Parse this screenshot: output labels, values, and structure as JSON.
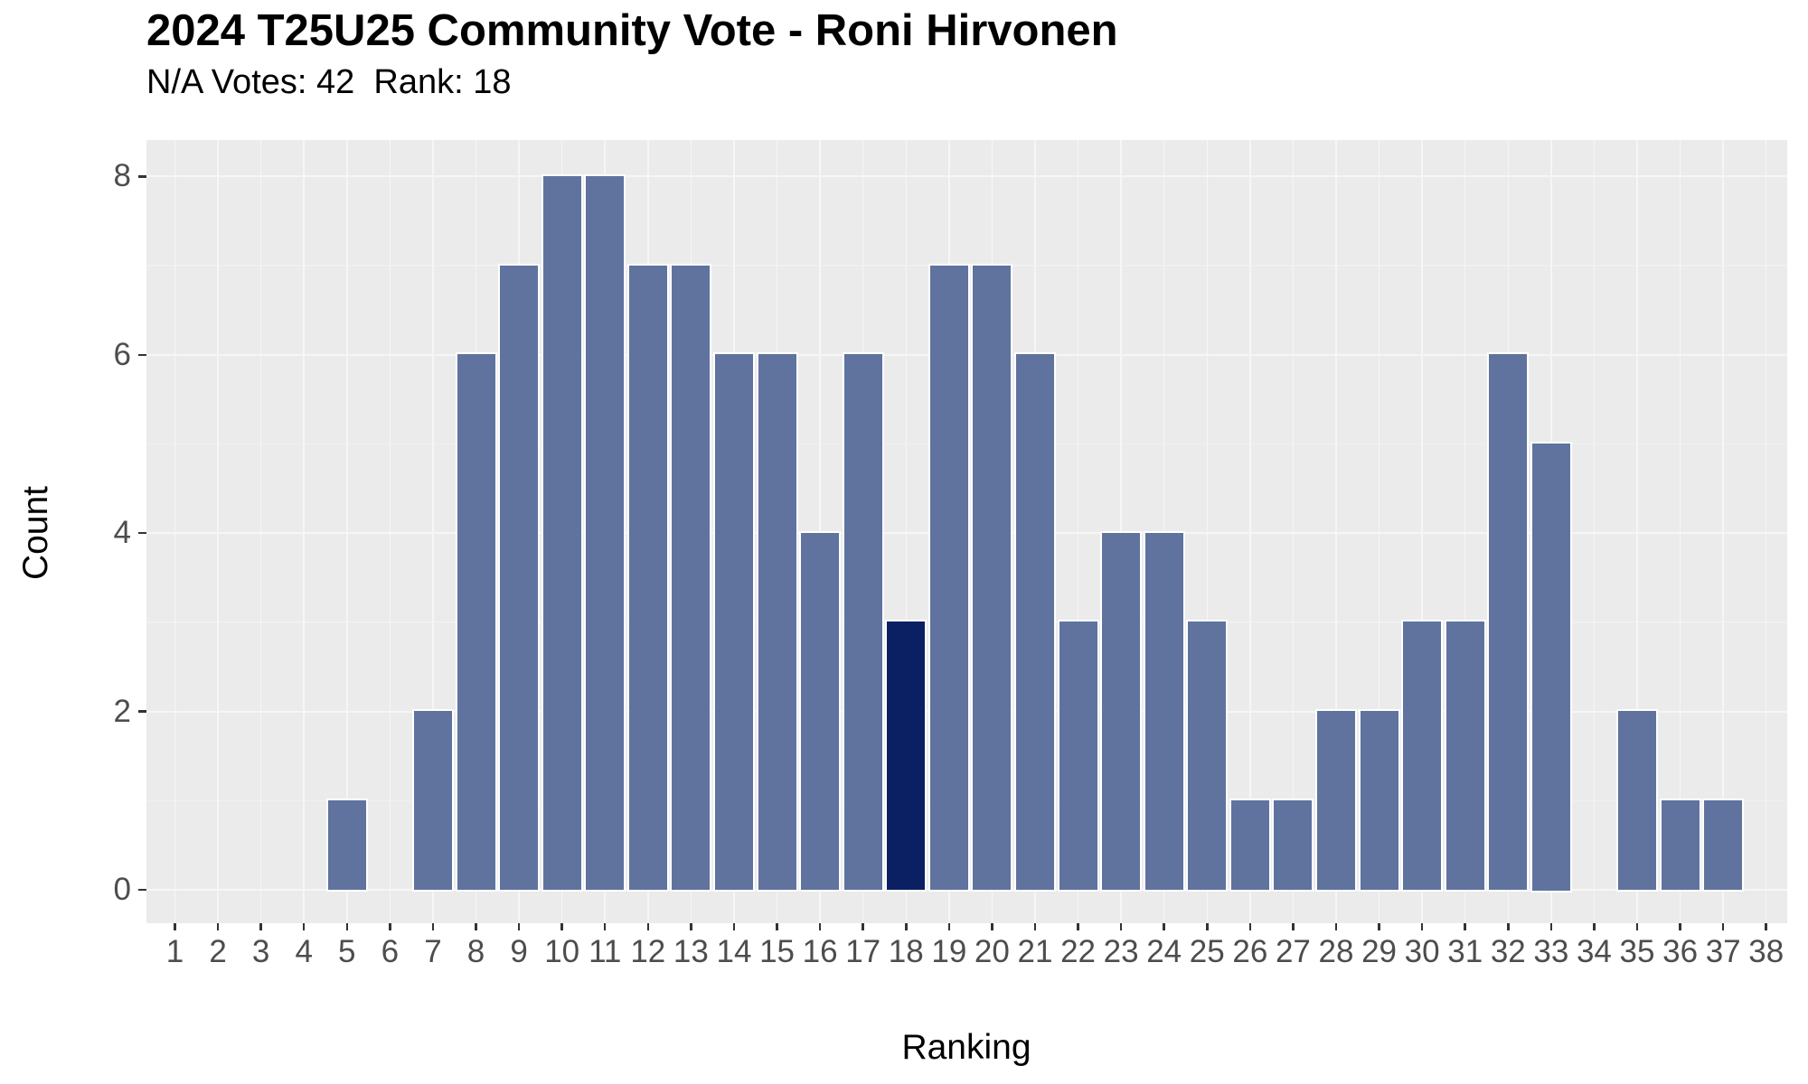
{
  "chart_data": {
    "type": "bar",
    "title": "2024 T25U25 Community Vote - Roni Hirvonen",
    "subtitle": "N/A Votes: 42  Rank: 18",
    "xlabel": "Ranking",
    "ylabel": "Count",
    "categories": [
      1,
      2,
      3,
      4,
      5,
      6,
      7,
      8,
      9,
      10,
      11,
      12,
      13,
      14,
      15,
      16,
      17,
      18,
      19,
      20,
      21,
      22,
      23,
      24,
      25,
      26,
      27,
      28,
      29,
      30,
      31,
      32,
      33,
      34,
      35,
      36,
      37,
      38
    ],
    "values": [
      0,
      0,
      0,
      0,
      1,
      0,
      2,
      6,
      7,
      8,
      8,
      7,
      7,
      6,
      6,
      4,
      6,
      3,
      7,
      7,
      6,
      3,
      4,
      4,
      3,
      1,
      1,
      2,
      2,
      3,
      3,
      6,
      5,
      0,
      2,
      1,
      1,
      0
    ],
    "highlight_category": 18,
    "y_ticks": [
      0,
      2,
      4,
      6,
      8
    ],
    "y_minor_ticks": [
      1,
      3,
      5,
      7
    ],
    "ylim": [
      0,
      8.4
    ],
    "grid": true,
    "legend": false,
    "colors": {
      "bar": "#5F739E",
      "highlight_bar": "#0A2063",
      "bar_border": "#FFFFFF",
      "panel_background": "#EBEBEB",
      "grid_major": "#F6F6F6",
      "grid_minor": "#F0F0F0",
      "axis_tick": "#333333",
      "tick_label": "#4D4D4D",
      "text": "#000000",
      "background": "#FFFFFF"
    }
  }
}
